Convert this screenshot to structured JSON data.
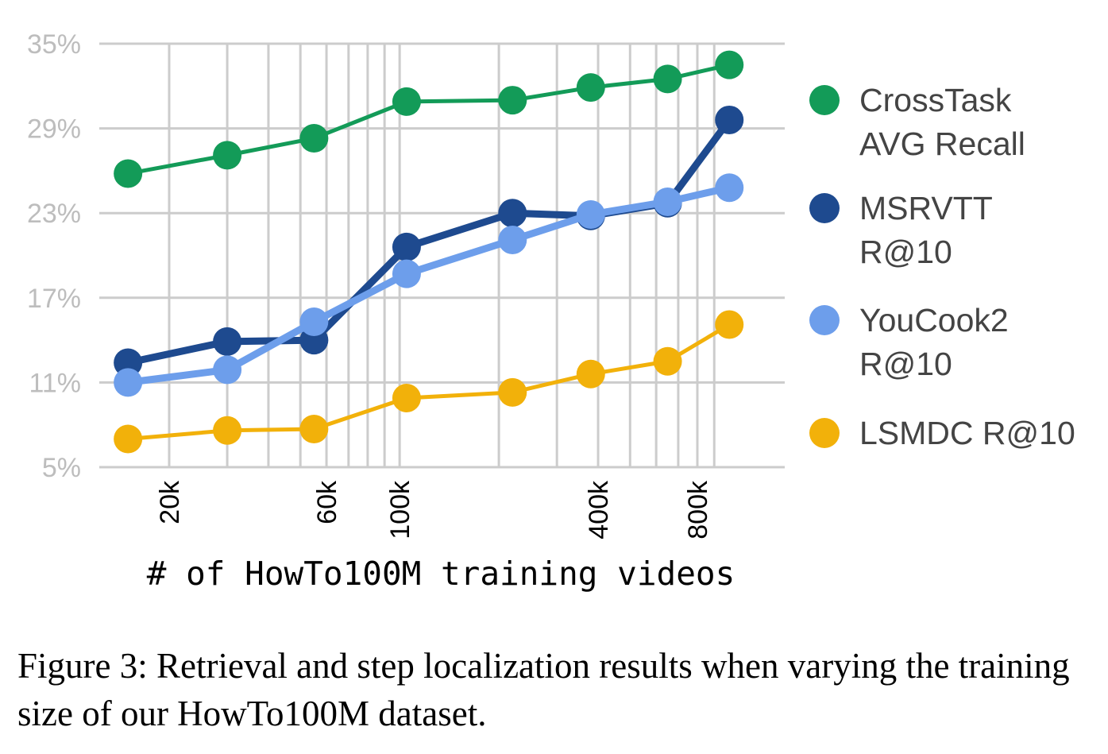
{
  "chart_data": {
    "type": "line",
    "title": "",
    "xlabel": "# of HowTo100M training videos",
    "ylabel": "",
    "x_scale": "log",
    "x_tick_labels": [
      {
        "label": "20k",
        "value": 20000
      },
      {
        "label": "60k",
        "value": 60000
      },
      {
        "label": "100k",
        "value": 100000
      },
      {
        "label": "400k",
        "value": 400000
      },
      {
        "label": "800k",
        "value": 800000
      }
    ],
    "y_ticks": [
      "5%",
      "11%",
      "17%",
      "23%",
      "29%",
      "35%"
    ],
    "y_tick_values": [
      5,
      11,
      17,
      23,
      29,
      35
    ],
    "ylim": [
      5,
      35
    ],
    "x": [
      15000,
      30000,
      55000,
      105000,
      220000,
      380000,
      650000,
      1000000
    ],
    "grid": true,
    "legend_position": "right",
    "series": [
      {
        "name": "CrossTask AVG Recall",
        "legend_lines": [
          "CrossTask",
          "AVG Recall"
        ],
        "color": "#139b58",
        "values": [
          25.8,
          27.1,
          28.3,
          30.9,
          31.0,
          31.9,
          32.5,
          33.5
        ]
      },
      {
        "name": "MSRVTT R@10",
        "legend_lines": [
          "MSRVTT",
          "R@10"
        ],
        "color": "#1e4a8f",
        "values": [
          12.4,
          13.9,
          14.0,
          20.6,
          23.0,
          22.8,
          23.7,
          29.6
        ]
      },
      {
        "name": "YouCook2 R@10",
        "legend_lines": [
          "YouCook2",
          "R@10"
        ],
        "color": "#6d9eeb",
        "values": [
          11.0,
          11.9,
          15.3,
          18.7,
          21.1,
          22.9,
          23.8,
          24.8
        ]
      },
      {
        "name": "LSMDC R@10",
        "legend_lines": [
          "LSMDC R@10"
        ],
        "color": "#f2b10a",
        "values": [
          7.0,
          7.6,
          7.7,
          9.9,
          10.3,
          11.6,
          12.5,
          15.1
        ]
      }
    ]
  },
  "caption": "Figure 3: Retrieval and step localization results when varying the training size of our HowTo100M dataset."
}
